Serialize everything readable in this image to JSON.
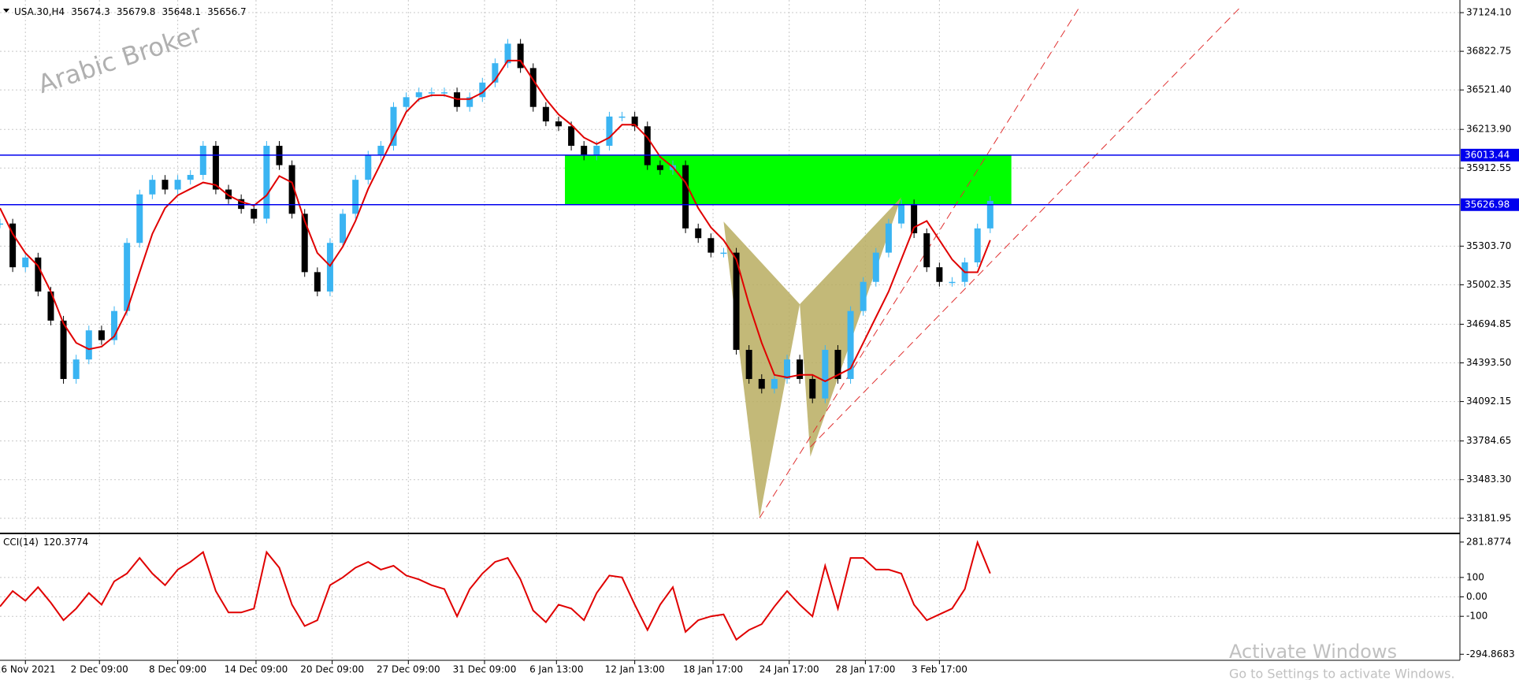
{
  "chart_data": [
    {
      "type": "candlestick",
      "symbol": "USA.30,H4",
      "quote": [
        35674.3,
        35679.8,
        35648.1,
        35656.7
      ],
      "watermark": "Arabic Broker",
      "xlim": [
        0,
        690
      ],
      "ylim": [
        33076,
        37192
      ],
      "yticks": [
        {
          "value": 37124.1,
          "label": "37124.10"
        },
        36822.75,
        {
          "value": 36521.4,
          "label": "36521.40"
        },
        {
          "value": 36213.9,
          "label": "36213.90"
        },
        35912.55,
        {
          "value": 35303.7,
          "label": "35303.70"
        },
        35002.35,
        34694.85,
        {
          "value": 34393.5,
          "label": "34393.50"
        },
        34092.15,
        33784.65,
        {
          "value": 33483.3,
          "label": "33483.30"
        },
        33181.95
      ],
      "xticks": [
        {
          "value": 12,
          "label": "26 Nov 2021"
        },
        {
          "value": 47,
          "label": "2 Dec 09:00"
        },
        {
          "value": 84,
          "label": "8 Dec 09:00"
        },
        {
          "value": 121,
          "label": "14 Dec 09:00"
        },
        {
          "value": 157,
          "label": "20 Dec 09:00"
        },
        {
          "value": 193,
          "label": "27 Dec 09:00"
        },
        {
          "value": 229,
          "label": "31 Dec 09:00"
        },
        {
          "value": 263,
          "label": "6 Jan 13:00"
        },
        {
          "value": 300,
          "label": "12 Jan 13:00"
        },
        {
          "value": 337,
          "label": "18 Jan 17:00"
        },
        {
          "value": 373,
          "label": "24 Jan 17:00"
        },
        {
          "value": 409,
          "label": "28 Jan 17:00"
        },
        {
          "value": 444,
          "label": "3 Feb 17:00"
        }
      ],
      "grid": true,
      "x": [
        0,
        6,
        12,
        18,
        24,
        30,
        36,
        42,
        48,
        54,
        60,
        66,
        72,
        78,
        84,
        90,
        96,
        102,
        108,
        114,
        120,
        126,
        132,
        138,
        144,
        150,
        156,
        162,
        168,
        174,
        180,
        186,
        192,
        198,
        204,
        210,
        216,
        222,
        228,
        234,
        240,
        246,
        252,
        258,
        264,
        270,
        276,
        282,
        288,
        294,
        300,
        306,
        312,
        318,
        324,
        330,
        336,
        342,
        348,
        354,
        360,
        366,
        372,
        378,
        384,
        390,
        396,
        402,
        408,
        414,
        420,
        426,
        432,
        438,
        444,
        450,
        456,
        462,
        468
      ],
      "series": [
        {
          "name": "Close",
          "up_color": "#3ab4f2",
          "down_color": "#000000",
          "values": [
            35480,
            35139,
            35215,
            34950,
            34723,
            34268,
            34420,
            34647,
            34571,
            34798,
            35329,
            35707,
            35821,
            35745,
            35821,
            35859,
            36086,
            35745,
            35670,
            35594,
            35518,
            36086,
            35935,
            35556,
            35101,
            34950,
            35329,
            35556,
            35821,
            36010,
            36086,
            36389,
            36465,
            36503,
            36503,
            36503,
            36389,
            36465,
            36579,
            36730,
            36882,
            36692,
            36389,
            36276,
            36238,
            36086,
            36010,
            36086,
            36314,
            36314,
            36238,
            35935,
            35897,
            35935,
            35442,
            35366,
            35253,
            35253,
            34495,
            34268,
            34192,
            34268,
            34420,
            34268,
            34116,
            34495,
            34268,
            34798,
            35025,
            35253,
            35480,
            35630,
            35404,
            35139,
            35025,
            35025,
            35177,
            35442,
            35657
          ]
        },
        {
          "name": "MA",
          "color": "#e00000",
          "values": [
            35600,
            35400,
            35250,
            35150,
            34950,
            34700,
            34550,
            34500,
            34520,
            34600,
            34800,
            35100,
            35400,
            35600,
            35700,
            35750,
            35800,
            35780,
            35700,
            35650,
            35620,
            35700,
            35850,
            35800,
            35500,
            35250,
            35150,
            35300,
            35500,
            35750,
            35950,
            36150,
            36350,
            36450,
            36480,
            36480,
            36450,
            36450,
            36500,
            36600,
            36750,
            36750,
            36600,
            36450,
            36330,
            36250,
            36150,
            36100,
            36150,
            36250,
            36250,
            36150,
            36000,
            35920,
            35800,
            35600,
            35450,
            35350,
            35200,
            34850,
            34550,
            34300,
            34280,
            34300,
            34300,
            34250,
            34300,
            34350,
            34550,
            34750,
            34950,
            35200,
            35450,
            35500,
            35350,
            35200,
            35100,
            35100,
            35350
          ]
        }
      ],
      "levels": [
        {
          "value": 36013.44,
          "label": "36013.44",
          "color": "#0000ee"
        },
        {
          "value": 35626.98,
          "label": "35626.98",
          "color": "#0000ee"
        }
      ],
      "zone": {
        "x": [
          267,
          478
        ],
        "y": [
          36013.44,
          35626.98
        ],
        "color": "#00ff00"
      },
      "pattern": {
        "color": "#b8ad60",
        "x": [
          342,
          359,
          378,
          383,
          426
        ],
        "y": [
          35495,
          33185,
          34851,
          33662,
          35685
        ]
      },
      "channel": [
        {
          "x": [
            359,
            510
          ],
          "y": [
            33185,
            37162
          ]
        },
        {
          "x": [
            383,
            586
          ],
          "y": [
            33738,
            37162
          ]
        }
      ]
    },
    {
      "type": "line",
      "title": "CCI(14)",
      "current": "120.3774",
      "xlim": [
        0,
        690
      ],
      "ylim": [
        -318,
        314
      ],
      "yticks": [
        281.8774,
        100,
        {
          "value": 0,
          "label": "0.00"
        },
        -100,
        -294.8683
      ],
      "x": [
        0,
        6,
        12,
        18,
        24,
        30,
        36,
        42,
        48,
        54,
        60,
        66,
        72,
        78,
        84,
        90,
        96,
        102,
        108,
        114,
        120,
        126,
        132,
        138,
        144,
        150,
        156,
        162,
        168,
        174,
        180,
        186,
        192,
        198,
        204,
        210,
        216,
        222,
        228,
        234,
        240,
        246,
        252,
        258,
        264,
        270,
        276,
        282,
        288,
        294,
        300,
        306,
        312,
        318,
        324,
        330,
        336,
        342,
        348,
        354,
        360,
        366,
        372,
        378,
        384,
        390,
        396,
        402,
        408,
        414,
        420,
        426,
        432,
        438,
        444,
        450,
        456,
        462,
        468
      ],
      "series": [
        {
          "name": "CCI",
          "color": "#e00000",
          "values": [
            -50,
            30,
            -20,
            50,
            -30,
            -120,
            -60,
            20,
            -40,
            80,
            120,
            200,
            120,
            60,
            140,
            180,
            230,
            30,
            -80,
            -80,
            -60,
            230,
            150,
            -40,
            -150,
            -120,
            60,
            100,
            150,
            180,
            140,
            160,
            110,
            90,
            60,
            40,
            -100,
            40,
            120,
            180,
            200,
            90,
            -70,
            -130,
            -40,
            -60,
            -120,
            20,
            110,
            100,
            -40,
            -170,
            -40,
            50,
            -180,
            -120,
            -100,
            -90,
            -220,
            -170,
            -140,
            -50,
            30,
            -40,
            -100,
            160,
            -60,
            200,
            200,
            140,
            140,
            120,
            -40,
            -120,
            -90,
            -60,
            40,
            280,
            120.3774
          ]
        }
      ]
    }
  ],
  "overlay": {
    "line1": "Activate Windows",
    "line2": "Go to Settings to activate Windows."
  }
}
